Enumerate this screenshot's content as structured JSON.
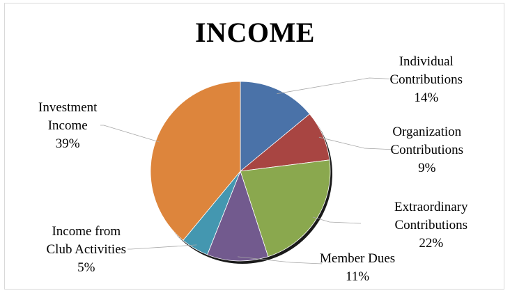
{
  "chart_data": {
    "type": "pie",
    "title": "INCOME",
    "categories": [
      "Individual Contributions",
      "Organization Contributions",
      "Extraordinary Contributions",
      "Member Dues",
      "Income from Club Activities",
      "Investment Income"
    ],
    "values": [
      14,
      9,
      22,
      11,
      5,
      39
    ],
    "value_suffix": "%",
    "label_lines": [
      [
        "Individual",
        "Contributions"
      ],
      [
        "Organization",
        "Contributions"
      ],
      [
        "Extraordinary",
        "Contributions"
      ],
      [
        "Member Dues"
      ],
      [
        "Income from",
        "Club Activities"
      ],
      [
        "Investment",
        "Income"
      ]
    ],
    "colors": [
      "#4a72a8",
      "#a84542",
      "#8aa84e",
      "#725a8e",
      "#4497b0",
      "#dd853c"
    ],
    "start_angle_deg": 0,
    "direction": "clockwise",
    "legend": "none",
    "data_labels": "outside with leader lines"
  }
}
